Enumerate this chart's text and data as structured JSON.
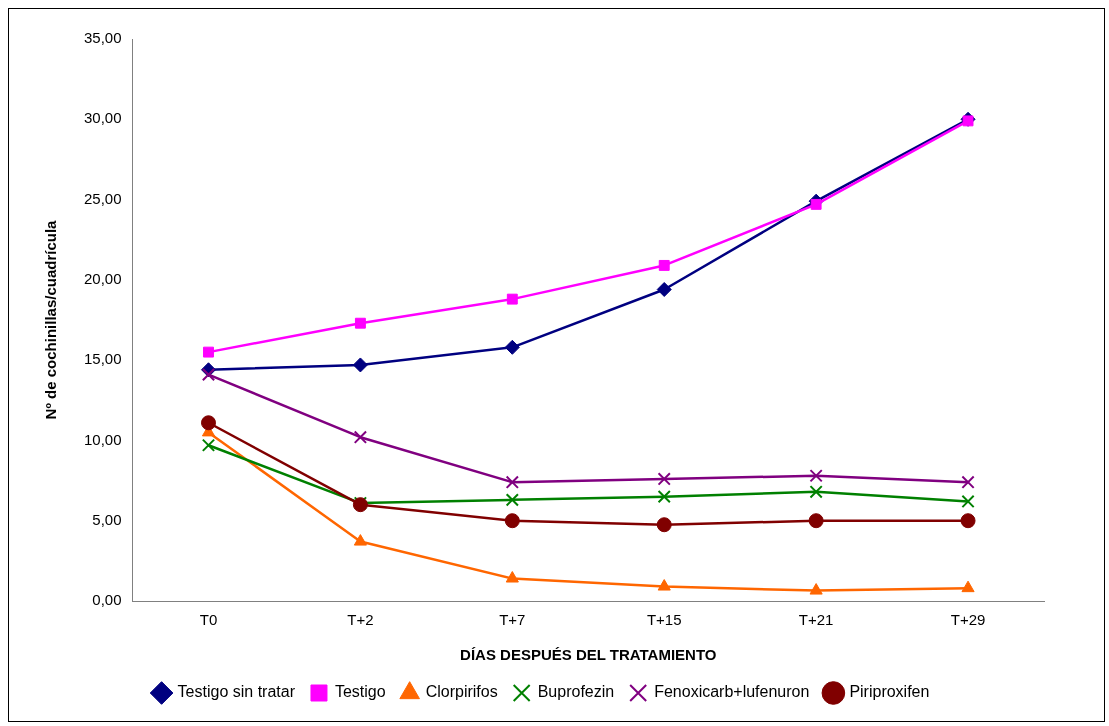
{
  "chart_data": {
    "type": "line",
    "xlabel": "DÍAS DESPUÉS DEL TRATAMIENTO",
    "ylabel": "Nº de cochinillas/cuadrícula",
    "categories": [
      "T0",
      "T+2",
      "T+7",
      "T+15",
      "T+21",
      "T+29"
    ],
    "ylim": [
      0,
      35
    ],
    "yticks": [
      {
        "value": 0,
        "label": "0,00"
      },
      {
        "value": 5,
        "label": "5,00"
      },
      {
        "value": 10,
        "label": "10,00"
      },
      {
        "value": 15,
        "label": "15,00"
      },
      {
        "value": 20,
        "label": "20,00"
      },
      {
        "value": 25,
        "label": "25,00"
      },
      {
        "value": 30,
        "label": "30,00"
      },
      {
        "value": 35,
        "label": "35,00"
      }
    ],
    "grid": false,
    "legend": "bottom",
    "line_style": "solid",
    "series": [
      {
        "name": "Testigo sin tratar",
        "color": "#000080",
        "marker": "diamond",
        "values": [
          14.4,
          14.7,
          15.8,
          19.4,
          24.9,
          30.0
        ]
      },
      {
        "name": "Testigo",
        "color": "#ff00ff",
        "marker": "square",
        "values": [
          15.5,
          17.3,
          18.8,
          20.9,
          24.7,
          29.9
        ]
      },
      {
        "name": "Clorpirifos",
        "color": "#ff6600",
        "marker": "triangle",
        "values": [
          10.5,
          3.7,
          1.4,
          0.9,
          0.65,
          0.8
        ]
      },
      {
        "name": "Buprofezin",
        "color": "#008000",
        "marker": "cross",
        "values": [
          9.7,
          6.1,
          6.3,
          6.5,
          6.8,
          6.2
        ]
      },
      {
        "name": "Fenoxicarb+lufenuron",
        "color": "#800080",
        "marker": "cross",
        "values": [
          14.1,
          10.2,
          7.4,
          7.6,
          7.8,
          7.4
        ]
      },
      {
        "name": "Piriproxifen",
        "color": "#800000",
        "marker": "circle",
        "values": [
          11.1,
          6.0,
          5.0,
          4.75,
          5.0,
          5.0
        ]
      }
    ]
  }
}
